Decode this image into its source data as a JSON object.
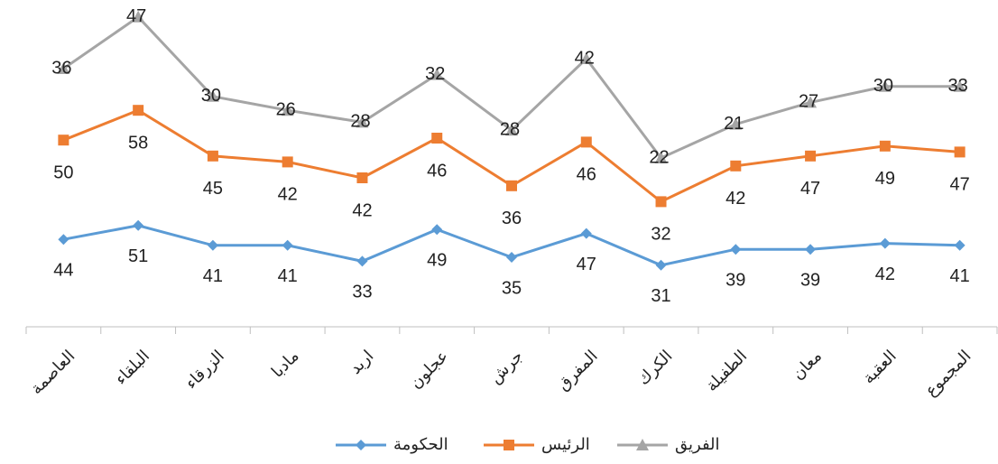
{
  "chart_data": {
    "type": "line",
    "stacked": true,
    "categories": [
      "العاصمة",
      "البلقاء",
      "الزرقاء",
      "مادبا",
      "اربد",
      "عجلون",
      "جرش",
      "المفرق",
      "الكرك",
      "الطفيلة",
      "معان",
      "العقبة",
      "المجموع"
    ],
    "series": [
      {
        "name": "الحكومة",
        "color": "#5b9bd5",
        "marker": "diamond",
        "values": [
          44,
          51,
          41,
          41,
          33,
          49,
          35,
          47,
          31,
          39,
          39,
          42,
          41
        ]
      },
      {
        "name": "الرئيس",
        "color": "#ed7d31",
        "marker": "square",
        "values": [
          50,
          58,
          45,
          42,
          42,
          46,
          36,
          46,
          32,
          42,
          47,
          49,
          47
        ]
      },
      {
        "name": "الفريق",
        "color": "#a5a5a5",
        "marker": "triangle",
        "values": [
          36,
          47,
          30,
          26,
          28,
          32,
          28,
          42,
          22,
          21,
          27,
          30,
          33
        ]
      }
    ],
    "ylim": [
      0,
      160
    ],
    "legend": "bottom"
  }
}
